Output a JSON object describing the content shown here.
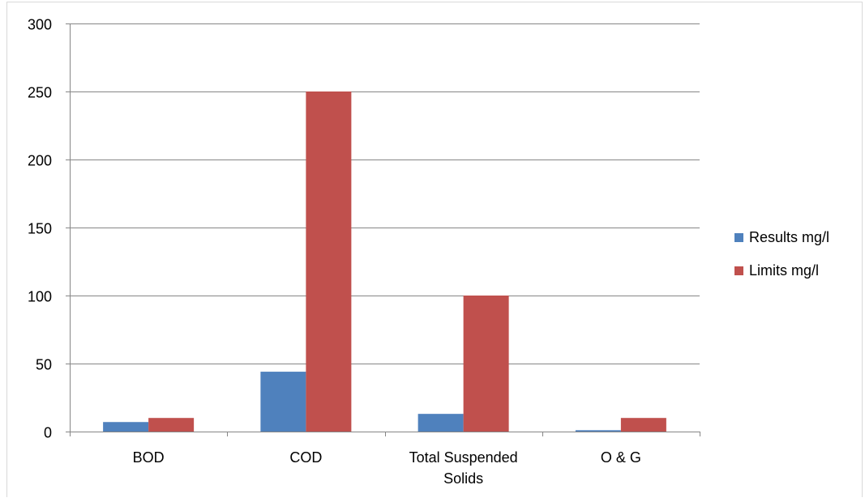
{
  "chart_data": {
    "type": "bar",
    "title": "",
    "xlabel": "",
    "ylabel": "",
    "categories": [
      [
        "BOD"
      ],
      [
        "COD"
      ],
      [
        "Total Suspended",
        "Solids"
      ],
      [
        "O & G"
      ]
    ],
    "series": [
      {
        "name": "Results mg/l",
        "color": "#4f81bd",
        "values": [
          7,
          44,
          13,
          1
        ]
      },
      {
        "name": "Limits mg/l",
        "color": "#c0504d",
        "values": [
          10,
          250,
          100,
          10
        ]
      }
    ],
    "ylim": [
      0,
      300
    ],
    "yticks": [
      0,
      50,
      100,
      150,
      200,
      250,
      300
    ],
    "grid": true,
    "legend_position": "right"
  }
}
